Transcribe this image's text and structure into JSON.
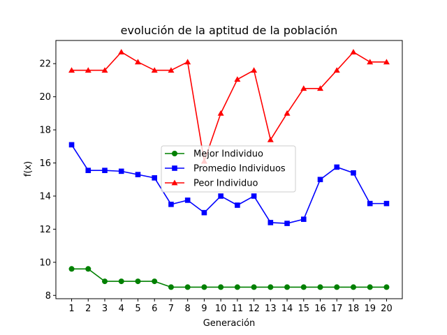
{
  "chart_data": {
    "type": "line",
    "title": "evolución de la aptitud de la población",
    "xlabel": "Generación",
    "ylabel": "f(x)",
    "x": [
      1,
      2,
      3,
      4,
      5,
      6,
      7,
      8,
      9,
      10,
      11,
      12,
      13,
      14,
      15,
      16,
      17,
      18,
      19,
      20
    ],
    "xticks": [
      "1",
      "2",
      "3",
      "4",
      "5",
      "6",
      "7",
      "8",
      "9",
      "10",
      "11",
      "12",
      "13",
      "14",
      "15",
      "16",
      "17",
      "18",
      "19",
      "20"
    ],
    "xlim": [
      0.05,
      20.95
    ],
    "ylim": [
      7.8,
      23.4
    ],
    "yticks": [
      "8",
      "10",
      "12",
      "14",
      "16",
      "18",
      "20",
      "22"
    ],
    "ytick_values": [
      8,
      10,
      12,
      14,
      16,
      18,
      20,
      22
    ],
    "grid": false,
    "legend_position": "center",
    "series": [
      {
        "name": "Mejor Individuo",
        "color": "#008000",
        "marker": "circle",
        "values": [
          9.6,
          9.6,
          8.85,
          8.85,
          8.85,
          8.85,
          8.5,
          8.5,
          8.5,
          8.5,
          8.5,
          8.5,
          8.5,
          8.5,
          8.5,
          8.5,
          8.5,
          8.5,
          8.5,
          8.5
        ]
      },
      {
        "name": "Promedio Individuos",
        "color": "#0000ff",
        "marker": "square",
        "values": [
          17.1,
          15.55,
          15.55,
          15.5,
          15.3,
          15.1,
          13.5,
          13.75,
          13.0,
          14.0,
          13.45,
          14.0,
          12.4,
          12.35,
          12.6,
          15.0,
          15.75,
          15.4,
          13.55,
          13.55
        ]
      },
      {
        "name": "Peor Individuo",
        "color": "#ff0000",
        "marker": "triangle",
        "values": [
          21.6,
          21.6,
          21.6,
          22.7,
          22.1,
          21.6,
          21.6,
          22.1,
          16.1,
          19.0,
          21.05,
          21.6,
          17.4,
          19.0,
          20.5,
          20.5,
          21.6,
          22.7,
          22.1,
          22.1
        ]
      }
    ]
  }
}
